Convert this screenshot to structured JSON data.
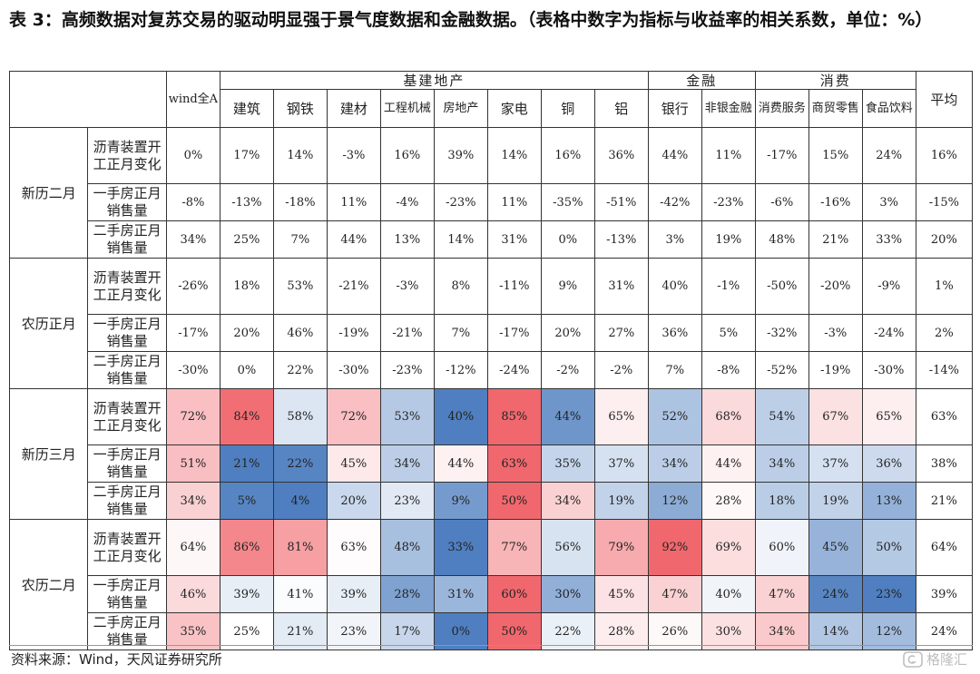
{
  "title": "表 3：高频数据对复苏交易的驱动明显强于景气度数据和金融数据。（表格中数字为指标与收益率的相关系数，单位：%）",
  "header": {
    "wind_label": "wind全A",
    "sections": [
      {
        "label": "基建地产",
        "color": "#333333"
      },
      {
        "label": "金融"
      },
      {
        "label": "消费"
      }
    ],
    "columns": [
      "建筑",
      "钢铁",
      "建材",
      "工程机械",
      "房地产",
      "家电",
      "铜",
      "铝",
      "银行",
      "非银金融",
      "消费服务",
      "商贸零售",
      "食品饮料"
    ],
    "avg_label": "平均"
  },
  "groups": [
    {
      "label": "新历二月",
      "rows": [
        {
          "metric": "沥青装置开工正月变化",
          "values": [
            "0%",
            "17%",
            "14%",
            "-3%",
            "16%",
            "39%",
            "14%",
            "16%",
            "36%",
            "44%",
            "11%",
            "-17%",
            "15%",
            "24%"
          ],
          "avg": "16%"
        },
        {
          "metric": "一手房正月销售量",
          "values": [
            "-8%",
            "-13%",
            "-18%",
            "11%",
            "-4%",
            "-23%",
            "11%",
            "-35%",
            "-51%",
            "-42%",
            "-23%",
            "-6%",
            "-16%",
            "3%"
          ],
          "avg": "-15%"
        },
        {
          "metric": "二手房正月销售量",
          "values": [
            "34%",
            "25%",
            "7%",
            "44%",
            "13%",
            "14%",
            "31%",
            "0%",
            "-13%",
            "3%",
            "19%",
            "48%",
            "21%",
            "33%"
          ],
          "avg": "20%"
        }
      ]
    },
    {
      "label": "农历正月",
      "rows": [
        {
          "metric": "沥青装置开工正月变化",
          "values": [
            "-26%",
            "18%",
            "53%",
            "-21%",
            "-3%",
            "8%",
            "-11%",
            "9%",
            "31%",
            "40%",
            "-1%",
            "-50%",
            "-20%",
            "-9%"
          ],
          "avg": "1%"
        },
        {
          "metric": "一手房正月销售量",
          "values": [
            "-17%",
            "20%",
            "46%",
            "-19%",
            "-21%",
            "7%",
            "-17%",
            "20%",
            "27%",
            "36%",
            "5%",
            "-32%",
            "-3%",
            "-24%"
          ],
          "avg": "2%"
        },
        {
          "metric": "二手房正月销售量",
          "values": [
            "-30%",
            "0%",
            "22%",
            "-30%",
            "-23%",
            "-12%",
            "-24%",
            "-2%",
            "-2%",
            "7%",
            "-8%",
            "-52%",
            "-19%",
            "-30%"
          ],
          "avg": "-14%"
        }
      ]
    },
    {
      "label": "新历三月",
      "rows": [
        {
          "metric": "沥青装置开工正月变化",
          "values": [
            "72%",
            "84%",
            "58%",
            "72%",
            "53%",
            "40%",
            "85%",
            "44%",
            "65%",
            "52%",
            "68%",
            "54%",
            "67%",
            "65%"
          ],
          "avg": "63%"
        },
        {
          "metric": "一手房正月销售量",
          "values": [
            "51%",
            "21%",
            "22%",
            "45%",
            "34%",
            "44%",
            "63%",
            "35%",
            "37%",
            "34%",
            "44%",
            "34%",
            "37%",
            "36%"
          ],
          "avg": "38%"
        },
        {
          "metric": "二手房正月销售量",
          "values": [
            "34%",
            "5%",
            "4%",
            "20%",
            "23%",
            "9%",
            "50%",
            "34%",
            "19%",
            "12%",
            "28%",
            "18%",
            "19%",
            "13%"
          ],
          "avg": "21%"
        }
      ]
    },
    {
      "label": "农历二月",
      "rows": [
        {
          "metric": "沥青装置开工正月变化",
          "values": [
            "64%",
            "86%",
            "81%",
            "63%",
            "48%",
            "33%",
            "77%",
            "56%",
            "79%",
            "92%",
            "69%",
            "60%",
            "45%",
            "50%"
          ],
          "avg": "64%"
        },
        {
          "metric": "一手房正月销售量",
          "values": [
            "46%",
            "39%",
            "41%",
            "39%",
            "28%",
            "31%",
            "60%",
            "30%",
            "45%",
            "47%",
            "40%",
            "47%",
            "24%",
            "23%"
          ],
          "avg": "39%"
        },
        {
          "metric": "二手房正月销售量",
          "values": [
            "35%",
            "25%",
            "21%",
            "23%",
            "17%",
            "0%",
            "50%",
            "22%",
            "28%",
            "26%",
            "30%",
            "34%",
            "14%",
            "12%"
          ],
          "avg": "24%"
        }
      ]
    }
  ],
  "colors": {
    "heat_low": "#4f7fc0",
    "heat_mid": "#ffffff",
    "heat_high": "#f0686e",
    "border": "#333333",
    "footer_rule": "#c98a5a"
  },
  "footer": {
    "source": "资料来源：Wind，天风证券研究所",
    "watermark": "格隆汇",
    "watermark_icon": "logo-icon"
  }
}
